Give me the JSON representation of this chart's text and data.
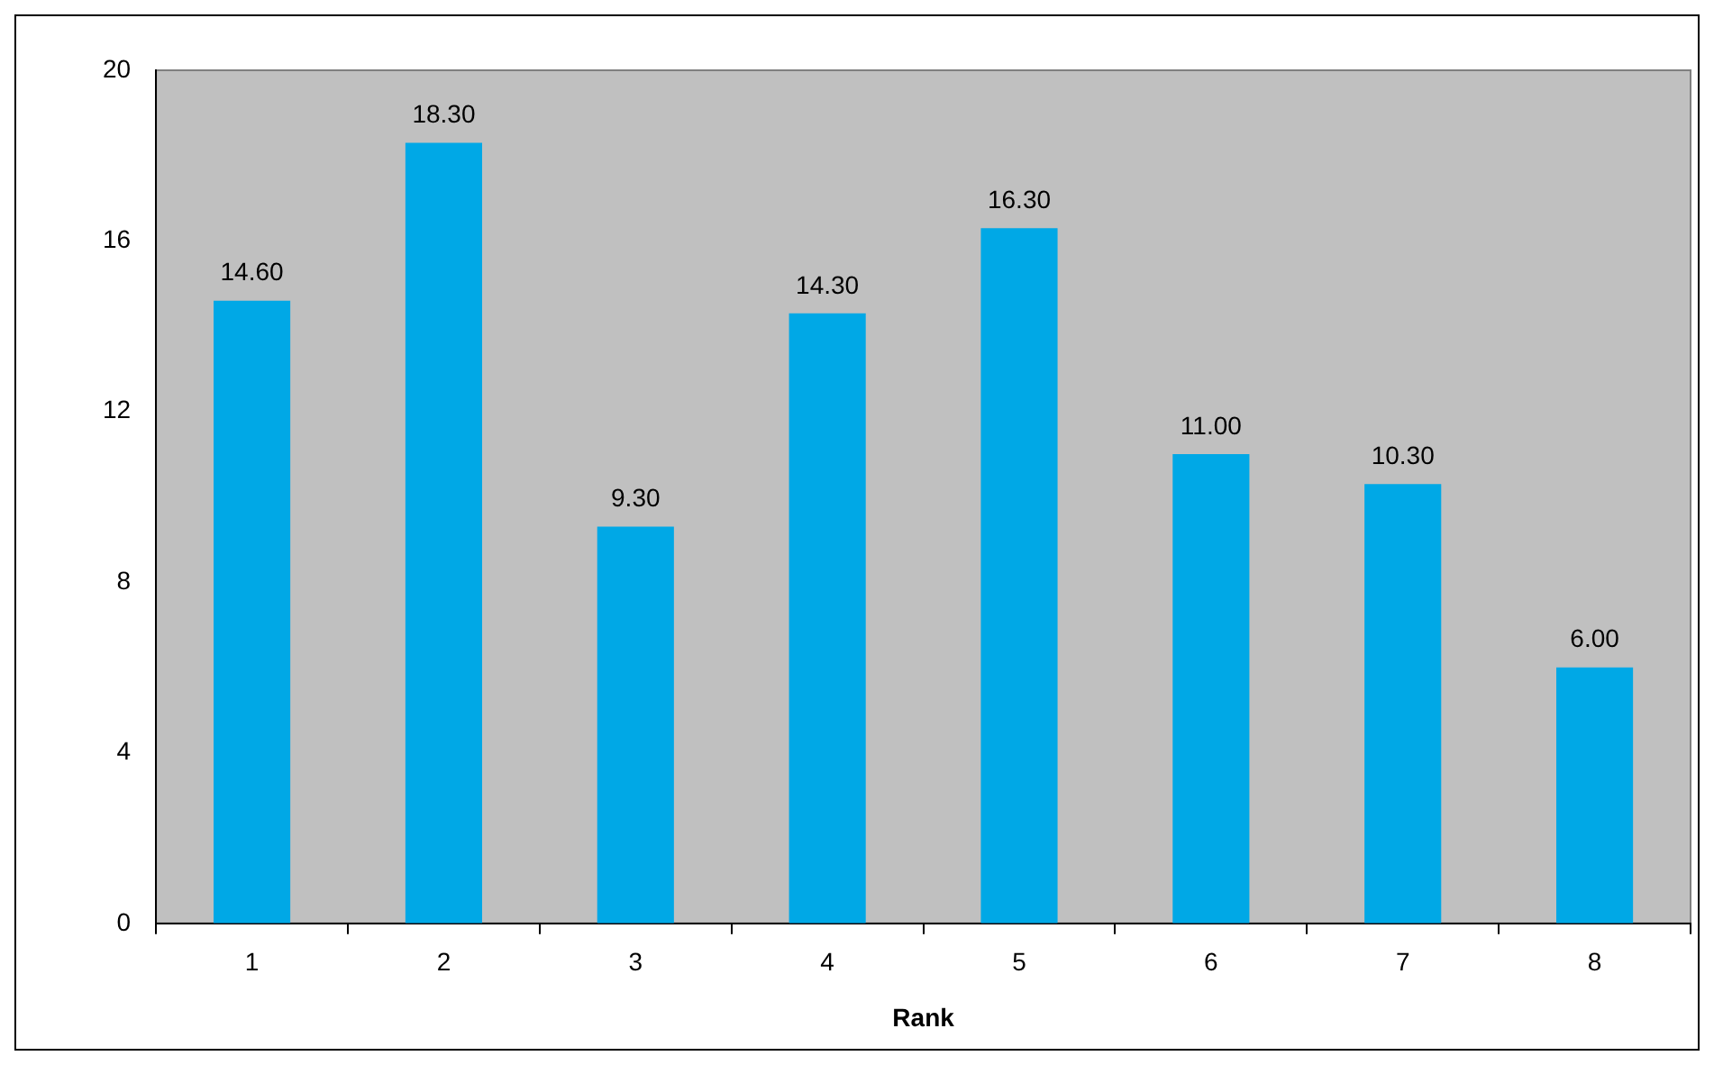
{
  "chart_data": {
    "type": "bar",
    "xlabel": "Rank",
    "categories": [
      "1",
      "2",
      "3",
      "4",
      "5",
      "6",
      "7",
      "8"
    ],
    "values": [
      14.6,
      18.3,
      9.3,
      14.3,
      16.3,
      11.0,
      10.3,
      6.0
    ],
    "color": "#00a8e6",
    "value_labels": [
      "14.60",
      "18.30",
      "9.30",
      "14.30",
      "16.30",
      "11.00",
      "10.30",
      "6.00"
    ],
    "ylim": [
      0,
      20
    ],
    "yticks": [
      0,
      4,
      8,
      12,
      16,
      20
    ],
    "grid": false,
    "legend": false
  }
}
